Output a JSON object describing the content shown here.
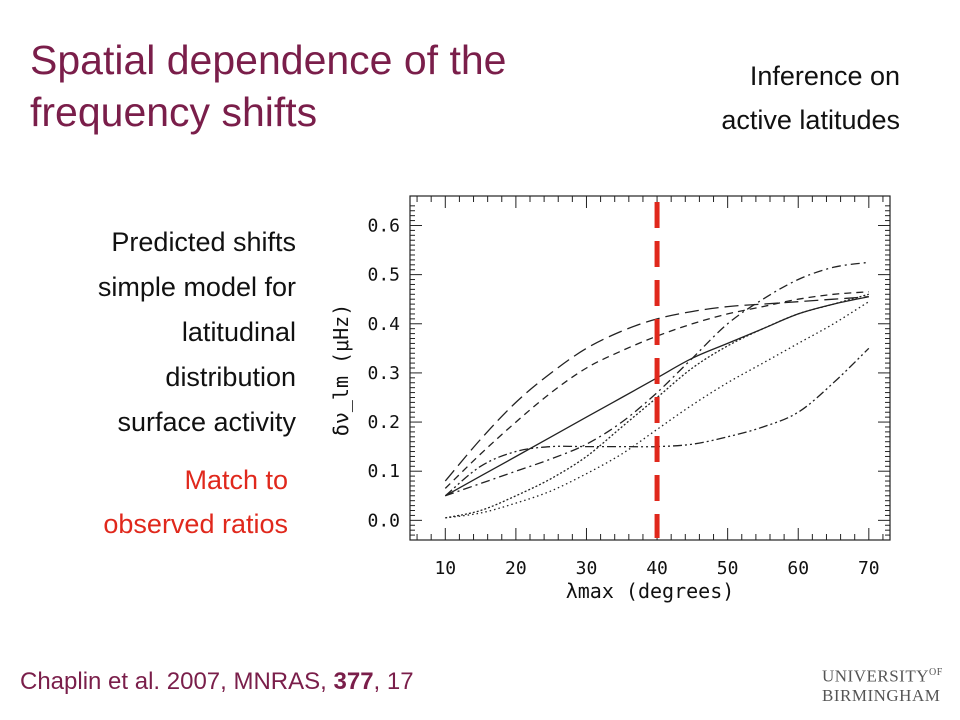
{
  "slide": {
    "title_line1": "Spatial dependence of the",
    "title_line2": "frequency shifts",
    "topright_line1": "Inference on",
    "topright_line2": "active latitudes",
    "desc_lines": [
      "Predicted shifts",
      "simple model for",
      "latitudinal",
      "distribution",
      "surface activity"
    ],
    "match_line1": "Match to",
    "match_line2": "observed ratios",
    "citation_prefix": "Chaplin et al. 2007, MNRAS, ",
    "citation_volume": "377",
    "citation_suffix": ", 17",
    "logo_line1": "UNIVERSITY",
    "logo_of": "OF",
    "logo_line2": "BIRMINGHAM"
  },
  "colors": {
    "title": "#7a1e4a",
    "accent_red": "#e0281c",
    "text": "#111111"
  },
  "chart_data": {
    "type": "line",
    "xlabel": "λmax (degrees)",
    "ylabel": "δν_lm (μHz)",
    "xlim": [
      5,
      73
    ],
    "ylim": [
      -0.04,
      0.66
    ],
    "x_ticks": [
      10,
      20,
      30,
      40,
      50,
      60,
      70
    ],
    "y_ticks": [
      0.0,
      0.1,
      0.2,
      0.3,
      0.4,
      0.5,
      0.6
    ],
    "x_tick_labels": [
      "10",
      "20",
      "30",
      "40",
      "50",
      "60",
      "70"
    ],
    "y_tick_labels": [
      "0.0",
      "0.1",
      "0.2",
      "0.3",
      "0.4",
      "0.5",
      "0.6"
    ],
    "grid": false,
    "vline": {
      "x": 40,
      "color": "#e0281c",
      "style": "dashed"
    },
    "series": [
      {
        "style": "solid",
        "x": [
          10,
          15,
          20,
          25,
          30,
          35,
          40,
          45,
          50,
          55,
          60,
          65,
          70
        ],
        "values": [
          0.05,
          0.09,
          0.13,
          0.17,
          0.21,
          0.25,
          0.29,
          0.33,
          0.36,
          0.39,
          0.42,
          0.44,
          0.455
        ]
      },
      {
        "style": "long-dash",
        "x": [
          10,
          15,
          20,
          25,
          30,
          35,
          40,
          45,
          50,
          55,
          60,
          65,
          70
        ],
        "values": [
          0.08,
          0.165,
          0.24,
          0.3,
          0.35,
          0.385,
          0.41,
          0.425,
          0.435,
          0.44,
          0.445,
          0.45,
          0.455
        ]
      },
      {
        "style": "short-dash",
        "x": [
          10,
          15,
          20,
          25,
          30,
          35,
          40,
          45,
          50,
          55,
          60,
          65,
          70
        ],
        "values": [
          0.065,
          0.135,
          0.2,
          0.26,
          0.31,
          0.345,
          0.375,
          0.4,
          0.42,
          0.435,
          0.45,
          0.46,
          0.465
        ]
      },
      {
        "style": "dash-dot",
        "x": [
          10,
          15,
          20,
          25,
          30,
          35,
          40,
          45,
          50,
          55,
          60,
          65,
          70
        ],
        "values": [
          0.05,
          0.075,
          0.1,
          0.125,
          0.155,
          0.2,
          0.26,
          0.33,
          0.4,
          0.45,
          0.49,
          0.515,
          0.525
        ]
      },
      {
        "style": "dash-dot-dot",
        "x": [
          10,
          15,
          20,
          25,
          30,
          35,
          40,
          45,
          50,
          55,
          60,
          65,
          70
        ],
        "values": [
          0.05,
          0.11,
          0.14,
          0.15,
          0.15,
          0.15,
          0.15,
          0.155,
          0.17,
          0.19,
          0.22,
          0.28,
          0.35
        ]
      },
      {
        "style": "dotted",
        "x": [
          10,
          15,
          20,
          25,
          30,
          35,
          40,
          45,
          50,
          55,
          60,
          65,
          70
        ],
        "values": [
          0.005,
          0.015,
          0.035,
          0.06,
          0.095,
          0.135,
          0.185,
          0.235,
          0.28,
          0.32,
          0.36,
          0.4,
          0.445
        ]
      },
      {
        "style": "dense-dot",
        "x": [
          10,
          15,
          20,
          25,
          30,
          35,
          40,
          45,
          50,
          55,
          60,
          65,
          70
        ],
        "values": [
          0.005,
          0.02,
          0.05,
          0.085,
          0.13,
          0.19,
          0.25,
          0.31,
          0.355,
          0.39,
          0.42,
          0.44,
          0.46
        ]
      }
    ]
  }
}
